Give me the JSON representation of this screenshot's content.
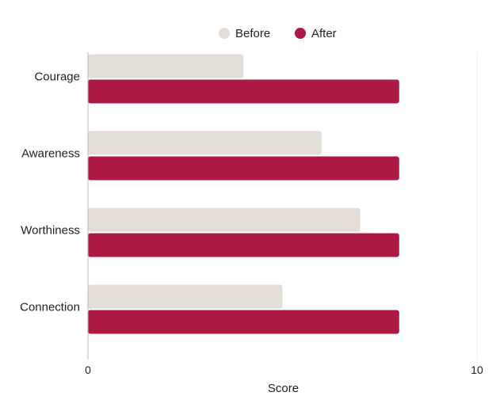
{
  "chart_data": {
    "type": "bar",
    "orientation": "horizontal",
    "categories": [
      "Courage",
      "Awareness",
      "Worthiness",
      "Connection"
    ],
    "series": [
      {
        "name": "Before",
        "color": "#e2ddd6",
        "values": [
          4,
          6,
          7,
          5
        ]
      },
      {
        "name": "After",
        "color": "#ac1a43",
        "values": [
          8,
          8,
          8,
          8
        ]
      }
    ],
    "xlabel": "Score",
    "ylabel": "",
    "xlim": [
      0,
      10
    ],
    "xticks": [
      "0",
      "10"
    ],
    "grid": false,
    "legend_position": "top-center"
  }
}
